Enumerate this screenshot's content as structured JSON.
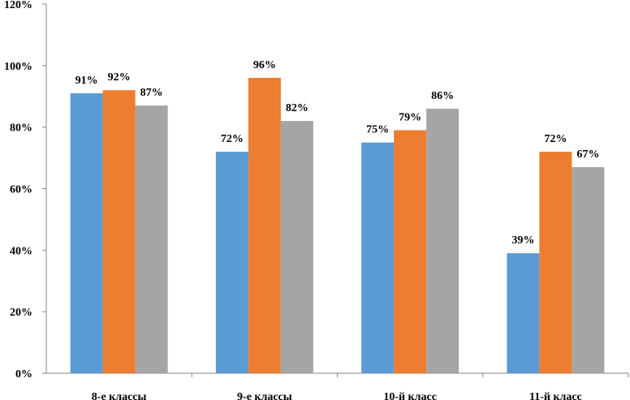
{
  "chart_data": {
    "type": "bar",
    "categories": [
      "8-е классы",
      "9-е классы",
      "10-й класс",
      "11-й класс"
    ],
    "series": [
      {
        "color": "#5b9bd5",
        "values": [
          91,
          72,
          75,
          39
        ]
      },
      {
        "color": "#ed7d31",
        "values": [
          92,
          96,
          79,
          72
        ]
      },
      {
        "color": "#a5a5a5",
        "values": [
          87,
          82,
          86,
          67
        ]
      }
    ],
    "ylim": [
      0,
      120
    ],
    "yticks": [
      "0%",
      "20%",
      "40%",
      "60%",
      "80%",
      "100%",
      "120%"
    ],
    "value_suffix": "%",
    "grid": false,
    "legend": "none",
    "title": "",
    "xlabel": "",
    "ylabel": ""
  }
}
